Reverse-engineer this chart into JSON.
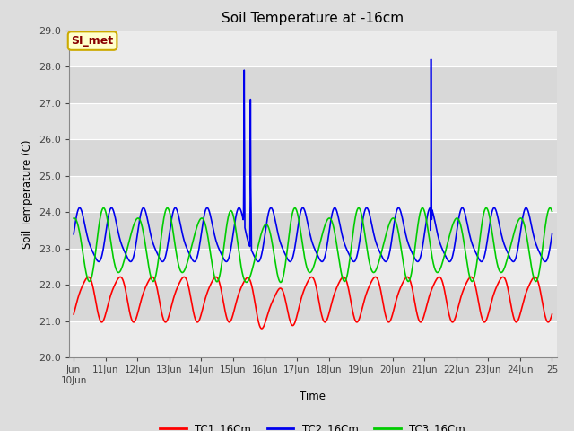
{
  "title": "Soil Temperature at -16cm",
  "ylabel": "Soil Temperature (C)",
  "xlabel": "Time",
  "ylim": [
    20.0,
    29.0
  ],
  "background_color": "#dddddd",
  "plot_bg_color": "#dddddd",
  "band_light": "#ebebeb",
  "band_dark": "#d8d8d8",
  "grid_color": "#ffffff",
  "annotation_text": "SI_met",
  "annotation_bg": "#ffffcc",
  "annotation_border": "#ccaa00",
  "annotation_text_color": "#880000",
  "tc1_color": "#ff0000",
  "tc2_color": "#0000ee",
  "tc3_color": "#00cc00",
  "legend_tc1": "TC1_16Cm",
  "legend_tc2": "TC2_16Cm",
  "legend_tc3": "TC3_16Cm",
  "tc1_linewidth": 1.2,
  "tc2_linewidth": 1.2,
  "tc3_linewidth": 1.2,
  "yticks": [
    20.0,
    21.0,
    22.0,
    23.0,
    24.0,
    25.0,
    26.0,
    27.0,
    28.0,
    29.0
  ],
  "xtick_labels": [
    "Jun\n10Jun",
    "11Jun",
    "12Jun",
    "13Jun",
    "14Jun",
    "15Jun",
    "16Jun",
    "17Jun",
    "18Jun",
    "19Jun",
    "20Jun",
    "21Jun",
    "22Jun",
    "23Jun",
    "24Jun",
    "25"
  ]
}
